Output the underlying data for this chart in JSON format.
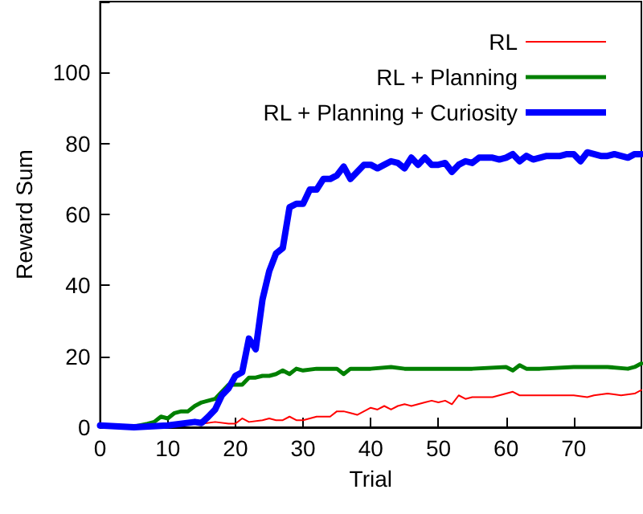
{
  "chart_data": {
    "type": "line",
    "xlabel": "Trial",
    "ylabel": "Reward Sum",
    "xlim": [
      0,
      80
    ],
    "ylim": [
      0,
      120
    ],
    "xticks": [
      0,
      10,
      20,
      30,
      40,
      50,
      60,
      70
    ],
    "yticks": [
      0,
      20,
      40,
      60,
      80,
      100,
      {
        "value": 120,
        "label": null
      }
    ],
    "grid": false,
    "legend": "top right",
    "marker": "none",
    "line_style": "solid",
    "series": [
      {
        "name": "RL",
        "color": "#ff0000",
        "x": [
          15,
          17,
          19,
          20,
          21,
          22,
          24,
          25,
          26,
          27,
          28,
          29,
          30,
          31,
          32,
          34,
          35,
          36,
          37,
          38,
          39,
          40,
          41,
          42,
          43,
          44,
          45,
          46,
          47,
          48,
          49,
          50,
          51,
          52,
          53,
          54,
          55,
          56,
          58,
          60,
          61,
          62,
          63,
          65,
          70,
          72,
          73,
          75,
          77,
          79,
          80
        ],
        "values": [
          1,
          1.5,
          1,
          1,
          2.5,
          1.5,
          2,
          2.5,
          2,
          2,
          3,
          2,
          2,
          2.5,
          3,
          3,
          4.5,
          4.5,
          4,
          3.5,
          4.5,
          5.5,
          5,
          6,
          5,
          6,
          6.5,
          6,
          6.5,
          7,
          7.5,
          7,
          7.5,
          6.5,
          9,
          8,
          8.5,
          8.5,
          8.5,
          9.5,
          10,
          9,
          9,
          9,
          9,
          8.5,
          9,
          9.5,
          9,
          9.5,
          10.5
        ]
      },
      {
        "name": "RL + Planning",
        "color": "#008000",
        "x": [
          0,
          5,
          7,
          8,
          9,
          10,
          11,
          12,
          13,
          14,
          15,
          16,
          17,
          18,
          19,
          20,
          21,
          22,
          23,
          24,
          25,
          26,
          27,
          28,
          29,
          30,
          32,
          34,
          35,
          36,
          37,
          40,
          43,
          45,
          50,
          55,
          60,
          61,
          62,
          63,
          65,
          70,
          75,
          78,
          79,
          80
        ],
        "values": [
          0.5,
          0.2,
          1,
          1.5,
          3,
          2.5,
          4,
          4.5,
          4.5,
          6,
          7,
          7.5,
          8,
          10,
          12,
          12,
          12,
          14,
          14,
          14.5,
          14.5,
          15,
          16,
          15,
          16.5,
          16,
          16.5,
          16.5,
          16.5,
          15,
          16.5,
          16.5,
          17,
          16.5,
          16.5,
          16.5,
          17,
          16,
          17.5,
          16.5,
          16.5,
          17,
          17,
          16.5,
          17,
          18
        ]
      },
      {
        "name": "RL + Planning + Curiosity",
        "color": "#0000ff",
        "x": [
          0,
          5,
          10,
          14,
          15,
          16,
          17,
          18,
          19,
          20,
          21,
          22,
          23,
          24,
          25,
          26,
          27,
          28,
          29,
          30,
          31,
          32,
          33,
          34,
          35,
          36,
          37,
          38,
          39,
          40,
          41,
          42,
          43,
          44,
          45,
          46,
          47,
          48,
          49,
          50,
          51,
          52,
          53,
          54,
          55,
          56,
          57,
          58,
          59,
          60,
          61,
          62,
          63,
          64,
          65,
          66,
          67,
          68,
          69,
          70,
          71,
          72,
          73,
          74,
          75,
          76,
          77,
          78,
          79,
          80
        ],
        "values": [
          0.5,
          0,
          0.5,
          1.5,
          1.2,
          3,
          5,
          9,
          11,
          14.5,
          15.5,
          25,
          22,
          36,
          44,
          49,
          50.5,
          62,
          63,
          63,
          67,
          67,
          70,
          70,
          71,
          73.5,
          70,
          72,
          74,
          74,
          73,
          74,
          75,
          74.5,
          73,
          76,
          74,
          76,
          74,
          74,
          74.5,
          72,
          74,
          75,
          74.5,
          76,
          76,
          76,
          75.5,
          76,
          77,
          75,
          76.5,
          75.5,
          76,
          76.5,
          76.5,
          76.5,
          77,
          77,
          75,
          77.5,
          77,
          76.5,
          76.5,
          77,
          76.5,
          76,
          77,
          77
        ]
      }
    ]
  }
}
